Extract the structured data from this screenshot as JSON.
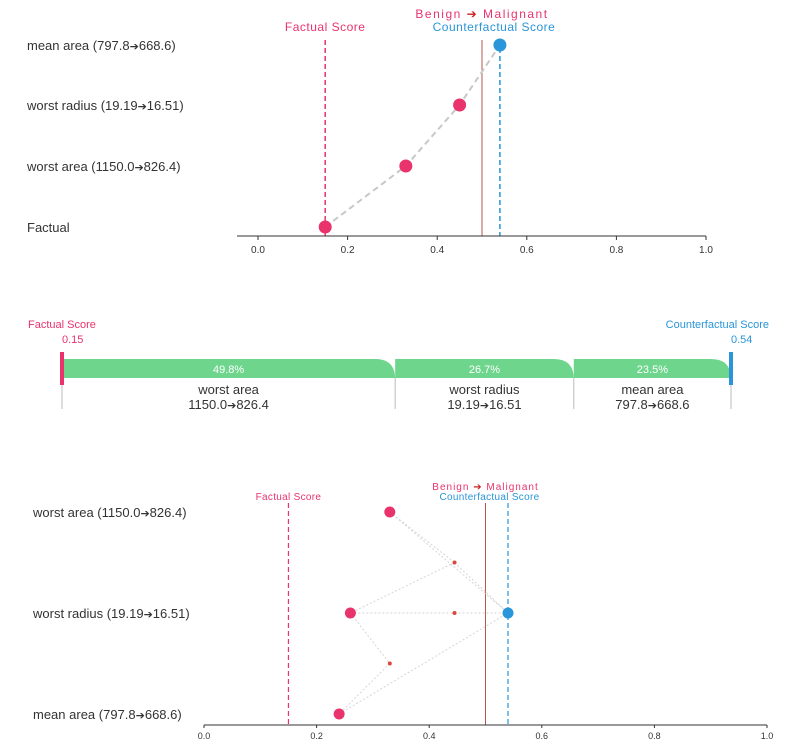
{
  "colors": {
    "factual": "#e8336d",
    "counterfactual": "#2a95d8",
    "boundary": "#b5574f",
    "bar": "#6dd58c",
    "connector": "#c8c8c8",
    "axis": "#333333",
    "text": "#333333",
    "arrow": "#cc1f1f"
  },
  "chart_data": [
    {
      "type": "scatter",
      "x_ticks": [
        "0.0",
        "0.2",
        "0.4",
        "0.6",
        "0.8",
        "1.0"
      ],
      "xlim": [
        -0.05,
        1.0
      ],
      "factual_score": 0.15,
      "boundary": 0.5,
      "counterfactual_score": 0.54,
      "legend": {
        "factual": "Factual Score",
        "benign": "Benign",
        "malignant": "Malignant",
        "counterfactual": "Counterfactual Score"
      },
      "rows": [
        {
          "label": "mean area (797.8",
          "arrow": "➔",
          "to": "668.6)",
          "x": 0.54,
          "kind": "counterfactual"
        },
        {
          "label": "worst radius (19.19",
          "arrow": "➔",
          "to": "16.51)",
          "x": 0.45,
          "kind": "step"
        },
        {
          "label": "worst area (1150.0",
          "arrow": "➔",
          "to": "826.4)",
          "x": 0.33,
          "kind": "step"
        },
        {
          "label": "Factual",
          "arrow": "",
          "to": "",
          "x": 0.15,
          "kind": "factual"
        }
      ]
    },
    {
      "type": "bar",
      "factual_label": "Factual Score",
      "factual_value": "0.15",
      "counterfactual_label": "Counterfactual Score",
      "counterfactual_value": "0.54",
      "segments": [
        {
          "percent": "49.8%",
          "name": "worst area",
          "from": "1150.0",
          "arrow": "➔",
          "to": "826.4",
          "value": 49.8
        },
        {
          "percent": "26.7%",
          "name": "worst radius",
          "from": "19.19",
          "arrow": "➔",
          "to": "16.51",
          "value": 26.7
        },
        {
          "percent": "23.5%",
          "name": "mean area",
          "from": "797.8",
          "arrow": "➔",
          "to": "668.6",
          "value": 23.5
        }
      ]
    },
    {
      "type": "scatter",
      "x_ticks": [
        "0.0",
        "0.2",
        "0.4",
        "0.6",
        "0.8",
        "1.0"
      ],
      "xlim": [
        0.0,
        1.0
      ],
      "factual_score": 0.15,
      "boundary": 0.5,
      "counterfactual_score": 0.54,
      "legend": {
        "factual": "Factual Score",
        "benign": "Benign",
        "malignant": "Malignant",
        "counterfactual": "Counterfactual Score"
      },
      "rows": [
        {
          "label": "worst area (1150.0",
          "arrow": "➔",
          "to": "826.4)",
          "x": 0.33
        },
        {
          "label": "worst radius (19.19",
          "arrow": "➔",
          "to": "16.51)",
          "x": 0.26
        },
        {
          "label": "mean area (797.8",
          "arrow": "➔",
          "to": "668.6)",
          "x": 0.24
        }
      ],
      "counterfactual_point": {
        "row": 1,
        "x": 0.54
      },
      "intermediate_points": [
        {
          "x": 0.445,
          "y": 0.5
        },
        {
          "x": 0.445,
          "y": 1.0
        },
        {
          "x": 0.33,
          "y": 1.5
        }
      ]
    }
  ]
}
